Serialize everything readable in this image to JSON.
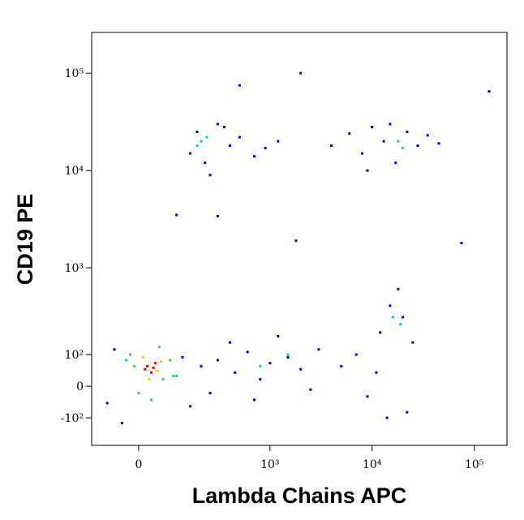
{
  "chart_data": {
    "type": "scatter",
    "xlabel": "Lambda Chains APC",
    "ylabel": "CD19 PE",
    "scale": "biexponential",
    "xlim": [
      -132,
      209000
    ],
    "ylim": [
      -232,
      262000
    ],
    "xticks": [
      0,
      {
        "value": 1000,
        "label": "10³"
      },
      {
        "value": 10000,
        "label": "10⁴"
      },
      {
        "value": 100000,
        "label": "10⁵"
      }
    ],
    "yticks": [
      {
        "value": -100,
        "label": "-10²"
      },
      0,
      {
        "value": 100,
        "label": "10²"
      },
      {
        "value": 1000,
        "label": "10³"
      },
      {
        "value": 10000,
        "label": "10⁴"
      },
      {
        "value": 100000,
        "label": "10⁵"
      }
    ],
    "series": [
      {
        "color": "#0000cd",
        "x": [
          -60,
          -80,
          120,
          150,
          -40,
          200,
          300,
          450,
          600,
          800,
          1000,
          1500,
          2000,
          3000,
          5000,
          7000,
          9000,
          12000,
          15000,
          20000,
          25000,
          18000,
          14000,
          22000,
          11000,
          700,
          250,
          1200,
          2500,
          400,
          150,
          180,
          220,
          300,
          400,
          500,
          700,
          900,
          250,
          350,
          1200,
          4000,
          6000,
          8000,
          10000,
          13000,
          17000,
          22000,
          28000,
          35000,
          9000,
          15000,
          45000,
          500,
          2000,
          140000,
          75000,
          1800,
          100,
          300
        ],
        "y": [
          120,
          -50,
          90,
          -60,
          -120,
          60,
          80,
          40,
          110,
          20,
          70,
          90,
          50,
          120,
          60,
          100,
          -30,
          200,
          400,
          300,
          150,
          600,
          -100,
          -80,
          40,
          -40,
          -20,
          180,
          -10,
          150,
          15000,
          25000,
          12000,
          30000,
          18000,
          22000,
          14000,
          17000,
          9000,
          28000,
          20000,
          18000,
          24000,
          15000,
          28000,
          20000,
          12000,
          25000,
          18000,
          23000,
          10000,
          30000,
          19000,
          75000,
          100000,
          65000,
          1800,
          1900,
          3500,
          3400
        ]
      },
      {
        "color": "#00c8e6",
        "x": [
          200,
          230,
          180,
          18000,
          20000,
          16000,
          19000,
          800,
          1500,
          100,
          -30
        ],
        "y": [
          20000,
          22000,
          18000,
          20000,
          17000,
          300,
          250,
          60,
          100,
          30,
          80
        ]
      },
      {
        "color": "#40d040",
        "x": [
          -20,
          60,
          80,
          0,
          50,
          -10,
          90,
          30
        ],
        "y": [
          100,
          20,
          80,
          -20,
          130,
          60,
          30,
          -40
        ]
      },
      {
        "color": "#f0d000",
        "x": [
          10,
          45,
          25,
          55
        ],
        "y": [
          90,
          45,
          20,
          75
        ]
      },
      {
        "color": "#e00000",
        "x": [
          20,
          30,
          40,
          15,
          35
        ],
        "y": [
          60,
          40,
          70,
          50,
          55
        ]
      }
    ]
  }
}
